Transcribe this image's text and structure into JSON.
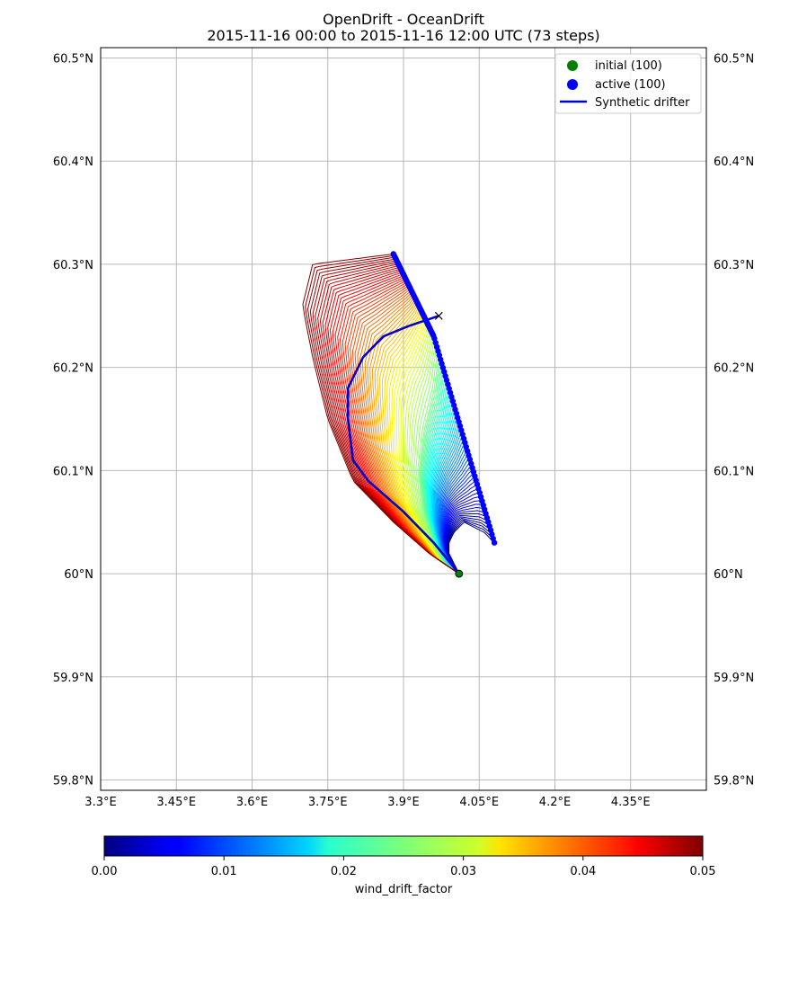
{
  "header": {
    "title": "OpenDrift - OceanDrift",
    "subtitle": "2015-11-16 00:00 to 2015-11-16 12:00 UTC (73 steps)"
  },
  "chart_data": {
    "type": "map-trajectories",
    "lon_range": [
      3.3,
      4.5
    ],
    "lat_range": [
      59.79,
      60.51
    ],
    "lon_ticks": [
      {
        "value": 3.3,
        "label": "3.3°E"
      },
      {
        "value": 3.45,
        "label": "3.45°E"
      },
      {
        "value": 3.6,
        "label": "3.6°E"
      },
      {
        "value": 3.75,
        "label": "3.75°E"
      },
      {
        "value": 3.9,
        "label": "3.9°E"
      },
      {
        "value": 4.05,
        "label": "4.05°E"
      },
      {
        "value": 4.2,
        "label": "4.2°E"
      },
      {
        "value": 4.35,
        "label": "4.35°E"
      }
    ],
    "lat_ticks": [
      {
        "value": 59.8,
        "label": "59.8°N"
      },
      {
        "value": 59.9,
        "label": "59.9°N"
      },
      {
        "value": 60.0,
        "label": "60°N"
      },
      {
        "value": 60.1,
        "label": "60.1°N"
      },
      {
        "value": 60.2,
        "label": "60.2°N"
      },
      {
        "value": 60.3,
        "label": "60.3°N"
      },
      {
        "value": 60.4,
        "label": "60.4°N"
      },
      {
        "value": 60.5,
        "label": "60.5°N"
      }
    ],
    "grid": true,
    "legend": {
      "placement": "top-right",
      "entries": [
        {
          "label": "initial (100)",
          "type": "marker",
          "color": "#008000"
        },
        {
          "label": "active (100)",
          "type": "marker",
          "color": "#0000ff"
        },
        {
          "label": "Synthetic drifter",
          "type": "line",
          "color": "#0000cc"
        }
      ]
    },
    "seed": {
      "lon": 4.01,
      "lat": 60.0
    },
    "trajectories": {
      "count": 100,
      "color_variable": "wind_drift_factor",
      "wind_drift_factor_range": [
        0.0,
        0.05
      ],
      "path_lowest_factor": [
        [
          4.01,
          60.0
        ],
        [
          4.0,
          60.01
        ],
        [
          3.99,
          60.02
        ],
        [
          3.99,
          60.03
        ],
        [
          4.0,
          60.04
        ],
        [
          4.02,
          60.05
        ],
        [
          4.06,
          60.04
        ],
        [
          4.08,
          60.03
        ]
      ],
      "path_mid_factor": [
        [
          4.01,
          60.0
        ],
        [
          3.98,
          60.01
        ],
        [
          3.96,
          60.03
        ],
        [
          3.94,
          60.06
        ],
        [
          3.93,
          60.1
        ],
        [
          3.94,
          60.14
        ],
        [
          3.96,
          60.18
        ],
        [
          3.97,
          60.22
        ],
        [
          3.96,
          60.23
        ]
      ],
      "path_highest_factor": [
        [
          4.01,
          60.0
        ],
        [
          3.95,
          60.02
        ],
        [
          3.88,
          60.05
        ],
        [
          3.8,
          60.09
        ],
        [
          3.75,
          60.15
        ],
        [
          3.72,
          60.21
        ],
        [
          3.7,
          60.26
        ],
        [
          3.72,
          60.3
        ],
        [
          3.88,
          60.31
        ]
      ],
      "final_positions_sample": [
        [
          3.88,
          60.31
        ],
        [
          3.9,
          60.29
        ],
        [
          3.93,
          60.27
        ],
        [
          3.96,
          60.26
        ],
        [
          3.97,
          60.23
        ],
        [
          3.97,
          60.2
        ],
        [
          3.96,
          60.17
        ],
        [
          3.96,
          60.14
        ],
        [
          3.99,
          60.12
        ],
        [
          4.02,
          60.1
        ],
        [
          4.04,
          60.08
        ],
        [
          4.05,
          60.06
        ],
        [
          4.05,
          60.05
        ],
        [
          4.06,
          60.04
        ],
        [
          4.08,
          60.03
        ],
        [
          4.0,
          60.0
        ]
      ]
    },
    "synthetic_drifter": {
      "name": "Synthetic drifter",
      "path": [
        [
          4.01,
          60.0
        ],
        [
          3.96,
          60.03
        ],
        [
          3.9,
          60.06
        ],
        [
          3.83,
          60.09
        ],
        [
          3.8,
          60.11
        ],
        [
          3.79,
          60.15
        ],
        [
          3.79,
          60.18
        ],
        [
          3.82,
          60.21
        ],
        [
          3.86,
          60.23
        ],
        [
          3.91,
          60.24
        ],
        [
          3.97,
          60.25
        ]
      ]
    },
    "colorbar": {
      "label": "wind_drift_factor",
      "ticks": [
        {
          "value": 0.0,
          "label": "0.00"
        },
        {
          "value": 0.01,
          "label": "0.01"
        },
        {
          "value": 0.02,
          "label": "0.02"
        },
        {
          "value": 0.03,
          "label": "0.03"
        },
        {
          "value": 0.04,
          "label": "0.04"
        },
        {
          "value": 0.05,
          "label": "0.05"
        }
      ],
      "colormap": "jet"
    }
  }
}
